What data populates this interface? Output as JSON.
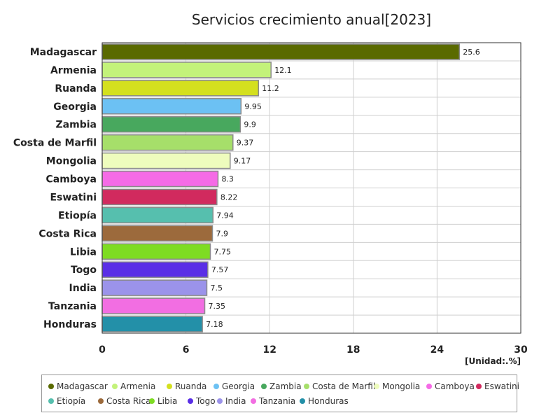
{
  "chart_data": {
    "type": "bar",
    "orientation": "horizontal",
    "title": "Servicios crecimiento anual[2023]",
    "unit": "[Unidad:.%]",
    "xlim": [
      0,
      30
    ],
    "xticks": [
      0,
      6,
      12,
      18,
      24,
      30
    ],
    "grid": true,
    "legend_position": "bottom",
    "categories": [
      "Madagascar",
      "Armenia",
      "Ruanda",
      "Georgia",
      "Zambia",
      "Costa de Marfil",
      "Mongolia",
      "Camboya",
      "Eswatini",
      "Etiopía",
      "Costa Rica",
      "Libia",
      "Togo",
      "India",
      "Tanzania",
      "Honduras"
    ],
    "values": [
      25.6,
      12.1,
      11.2,
      9.95,
      9.9,
      9.37,
      9.17,
      8.3,
      8.22,
      7.94,
      7.9,
      7.75,
      7.57,
      7.5,
      7.35,
      7.18
    ],
    "value_labels": [
      "25.6",
      "12.1",
      "11.2",
      "9.95",
      "9.9",
      "9.37",
      "9.17",
      "8.3",
      "8.22",
      "7.94",
      "7.9",
      "7.75",
      "7.57",
      "7.5",
      "7.35",
      "7.18"
    ],
    "colors": [
      "#5a6a00",
      "#c3f27a",
      "#d4e01e",
      "#6cc1f3",
      "#48a85e",
      "#a6df6a",
      "#eefcbd",
      "#f56be6",
      "#d12a5e",
      "#56bfae",
      "#9c6a3c",
      "#7edc22",
      "#5a2fe6",
      "#9b93ea",
      "#f26ee2",
      "#2390a8"
    ]
  }
}
